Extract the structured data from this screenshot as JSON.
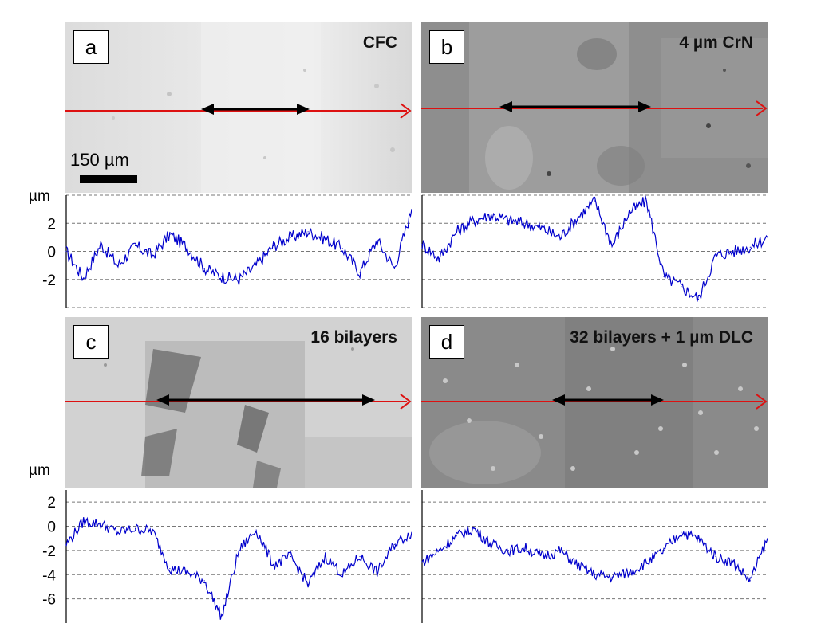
{
  "chart_data": [
    {
      "panel": "a",
      "type": "line",
      "title": "CFC",
      "ylabel": "µm",
      "ylim": [
        -4,
        4
      ],
      "yticks": [
        2,
        0,
        -2
      ],
      "scale_bar": "150 µm",
      "color": "#0000cc",
      "x": [
        0,
        0.05,
        0.1,
        0.15,
        0.2,
        0.25,
        0.3,
        0.35,
        0.4,
        0.45,
        0.5,
        0.55,
        0.6,
        0.65,
        0.7,
        0.75,
        0.8,
        0.85,
        0.9,
        0.95,
        1.0
      ],
      "values": [
        0.0,
        -1.9,
        0.5,
        -1.0,
        0.4,
        -0.3,
        1.2,
        0.3,
        -1.2,
        -1.8,
        -2.0,
        -1.0,
        0.4,
        1.0,
        1.4,
        0.9,
        0.2,
        -1.5,
        0.8,
        -1.2,
        3.0
      ]
    },
    {
      "panel": "b",
      "type": "line",
      "title": "4 µm CrN",
      "ylabel": "",
      "ylim": [
        -4,
        4
      ],
      "yticks": [],
      "color": "#0000cc",
      "x": [
        0,
        0.05,
        0.1,
        0.15,
        0.2,
        0.25,
        0.3,
        0.35,
        0.4,
        0.45,
        0.5,
        0.55,
        0.6,
        0.65,
        0.7,
        0.75,
        0.8,
        0.85,
        0.9,
        0.95,
        1.0
      ],
      "values": [
        0.5,
        -0.5,
        1.4,
        2.2,
        2.6,
        2.2,
        2.0,
        1.6,
        1.0,
        2.4,
        3.6,
        0.4,
        2.8,
        3.6,
        -1.8,
        -2.5,
        -3.4,
        -0.3,
        0.0,
        0.3,
        1.0
      ]
    },
    {
      "panel": "c",
      "type": "line",
      "title": "16 bilayers",
      "ylabel": "µm",
      "ylim": [
        -8,
        3
      ],
      "yticks": [
        2,
        0,
        -2,
        -4,
        -6
      ],
      "color": "#0000cc",
      "x": [
        0,
        0.05,
        0.1,
        0.15,
        0.2,
        0.25,
        0.3,
        0.35,
        0.4,
        0.45,
        0.5,
        0.55,
        0.6,
        0.65,
        0.7,
        0.75,
        0.8,
        0.85,
        0.9,
        0.95,
        1.0
      ],
      "values": [
        -1.5,
        0.4,
        0.2,
        -0.5,
        -0.2,
        -0.4,
        -3.5,
        -3.8,
        -4.5,
        -7.5,
        -2.0,
        -0.3,
        -3.2,
        -2.5,
        -4.8,
        -2.5,
        -4.0,
        -2.5,
        -3.8,
        -1.5,
        -0.5
      ]
    },
    {
      "panel": "d",
      "type": "line",
      "title": "32 bilayers + 1 µm DLC",
      "ylabel": "",
      "ylim": [
        -8,
        3
      ],
      "yticks": [],
      "color": "#0000cc",
      "x": [
        0,
        0.05,
        0.1,
        0.15,
        0.2,
        0.25,
        0.3,
        0.35,
        0.4,
        0.45,
        0.5,
        0.55,
        0.6,
        0.65,
        0.7,
        0.75,
        0.8,
        0.85,
        0.9,
        0.95,
        1.0
      ],
      "values": [
        -3.0,
        -2.0,
        -0.8,
        -0.2,
        -1.5,
        -2.0,
        -1.8,
        -2.5,
        -2.0,
        -3.2,
        -4.0,
        -4.2,
        -3.8,
        -3.0,
        -2.0,
        -0.5,
        -1.0,
        -2.5,
        -3.0,
        -4.5,
        -1.0
      ]
    }
  ]
}
